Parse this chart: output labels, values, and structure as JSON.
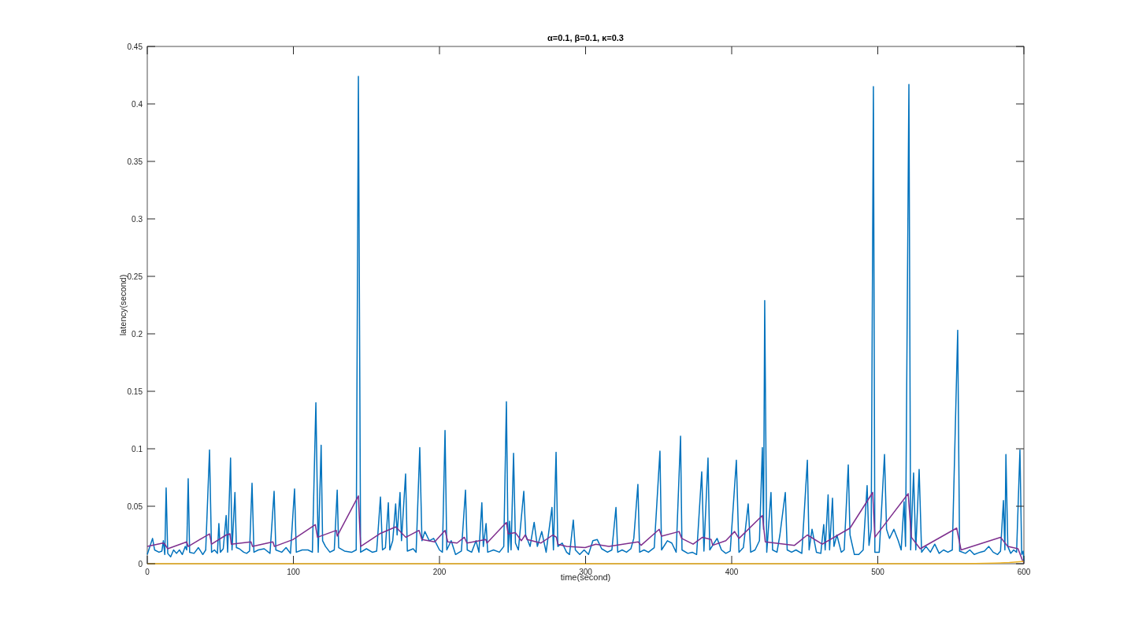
{
  "chart_data": {
    "type": "line",
    "title": "α=0.1, β=0.1, κ=0.3",
    "xlabel": "time(second)",
    "ylabel": "latency(second)",
    "xlim": [
      0,
      600
    ],
    "xticks": [
      0,
      100,
      200,
      300,
      400,
      500,
      600
    ],
    "ylim": [
      0,
      0.45
    ],
    "yticks": [
      0,
      0.05,
      0.1,
      0.15,
      0.2,
      0.25,
      0.3,
      0.35,
      0.4,
      0.45
    ],
    "grid": false,
    "marker": "none",
    "line_style": "solid",
    "series": [
      {
        "color": "#0072bd",
        "x": [
          0,
          3.6,
          5,
          8,
          10,
          11,
          12,
          12.9,
          14,
          16,
          18,
          20,
          22,
          24,
          26,
          27,
          28,
          29,
          32,
          35,
          38,
          40,
          42.6,
          44,
          46,
          48,
          49,
          50,
          52,
          54,
          55,
          57,
          58,
          60,
          61,
          63,
          66,
          68,
          70,
          71.7,
          73,
          76,
          80,
          84,
          86.8,
          88,
          92,
          95,
          98,
          100.8,
          102,
          106,
          110,
          113,
          115.4,
          117,
          119,
          120,
          122,
          125,
          128,
          130,
          131,
          135,
          140,
          143,
          144.5,
          146,
          150,
          154,
          157,
          159.6,
          161,
          163,
          165,
          166,
          168,
          170,
          171,
          173,
          174,
          176.8,
          178,
          182,
          184,
          186.5,
          188,
          190,
          193,
          196,
          200,
          202,
          203.8,
          205,
          208,
          211,
          215,
          217.8,
          219,
          222,
          225,
          227,
          229,
          230,
          231.9,
          233,
          237,
          241,
          244,
          245.8,
          247,
          248,
          249,
          250.7,
          252,
          254,
          257.7,
          259,
          262,
          264.8,
          267,
          270,
          273,
          277,
          278,
          279.8,
          281,
          284,
          287,
          289,
          291.6,
          293,
          296,
          299,
          302,
          305,
          308,
          311,
          315,
          318,
          320.8,
          322,
          325,
          328,
          331,
          333,
          335.8,
          337,
          340,
          343,
          347,
          350.9,
          352,
          356,
          359,
          362,
          365,
          366,
          370,
          373,
          376,
          379.5,
          381,
          383.8,
          385,
          390,
          393,
          396,
          399,
          403.2,
          405,
          408,
          411.3,
          413,
          416,
          419,
          421,
          421.8,
          422.6,
          424,
          426.9,
          428,
          431,
          433,
          436.7,
          438,
          441,
          444,
          448,
          451.8,
          453,
          455,
          458,
          461,
          463,
          464,
          466,
          467,
          469,
          470,
          472,
          475,
          477,
          479.8,
          481,
          484,
          487,
          490,
          492.7,
          494,
          495.5,
          497,
          498,
          501,
          504.6,
          506,
          508,
          511,
          514,
          516,
          518,
          519,
          521.3,
          522.5,
          524.5,
          526,
          528.3,
          530,
          533,
          536,
          539,
          542,
          545,
          548,
          551,
          554.7,
          556,
          560,
          563,
          566,
          570,
          573,
          576,
          579,
          582,
          584,
          586,
          587,
          587.7,
          589,
          591,
          593,
          595,
          597.3,
          598.5,
          599.5,
          600
        ],
        "values": [
          0.008,
          0.022,
          0.012,
          0.01,
          0.011,
          0.02,
          0.008,
          0.066,
          0.009,
          0.006,
          0.012,
          0.009,
          0.012,
          0.008,
          0.015,
          0.012,
          0.074,
          0.01,
          0.009,
          0.014,
          0.008,
          0.012,
          0.099,
          0.01,
          0.012,
          0.009,
          0.035,
          0.01,
          0.013,
          0.042,
          0.01,
          0.092,
          0.012,
          0.062,
          0.014,
          0.013,
          0.01,
          0.009,
          0.011,
          0.07,
          0.01,
          0.012,
          0.013,
          0.009,
          0.063,
          0.012,
          0.01,
          0.014,
          0.009,
          0.065,
          0.01,
          0.012,
          0.012,
          0.01,
          0.14,
          0.01,
          0.103,
          0.02,
          0.015,
          0.01,
          0.012,
          0.064,
          0.014,
          0.011,
          0.01,
          0.012,
          0.424,
          0.01,
          0.013,
          0.01,
          0.011,
          0.058,
          0.012,
          0.014,
          0.053,
          0.012,
          0.02,
          0.052,
          0.025,
          0.062,
          0.02,
          0.078,
          0.011,
          0.013,
          0.01,
          0.101,
          0.02,
          0.028,
          0.02,
          0.022,
          0.012,
          0.01,
          0.116,
          0.012,
          0.02,
          0.008,
          0.011,
          0.064,
          0.012,
          0.01,
          0.02,
          0.01,
          0.053,
          0.015,
          0.035,
          0.01,
          0.012,
          0.01,
          0.015,
          0.141,
          0.01,
          0.037,
          0.012,
          0.096,
          0.018,
          0.012,
          0.063,
          0.025,
          0.015,
          0.036,
          0.015,
          0.028,
          0.01,
          0.049,
          0.012,
          0.097,
          0.015,
          0.018,
          0.01,
          0.008,
          0.038,
          0.012,
          0.008,
          0.012,
          0.008,
          0.02,
          0.021,
          0.013,
          0.01,
          0.012,
          0.049,
          0.01,
          0.012,
          0.01,
          0.013,
          0.022,
          0.069,
          0.01,
          0.012,
          0.01,
          0.014,
          0.098,
          0.012,
          0.02,
          0.018,
          0.01,
          0.111,
          0.012,
          0.009,
          0.01,
          0.008,
          0.08,
          0.011,
          0.092,
          0.012,
          0.022,
          0.012,
          0.009,
          0.011,
          0.09,
          0.01,
          0.014,
          0.052,
          0.01,
          0.012,
          0.02,
          0.101,
          0.03,
          0.229,
          0.01,
          0.062,
          0.012,
          0.01,
          0.025,
          0.062,
          0.012,
          0.01,
          0.012,
          0.009,
          0.09,
          0.012,
          0.03,
          0.01,
          0.009,
          0.034,
          0.012,
          0.06,
          0.012,
          0.057,
          0.015,
          0.025,
          0.01,
          0.012,
          0.086,
          0.025,
          0.008,
          0.008,
          0.012,
          0.068,
          0.016,
          0.03,
          0.415,
          0.01,
          0.01,
          0.095,
          0.03,
          0.022,
          0.03,
          0.02,
          0.012,
          0.054,
          0.015,
          0.417,
          0.012,
          0.079,
          0.012,
          0.082,
          0.01,
          0.015,
          0.01,
          0.017,
          0.009,
          0.012,
          0.01,
          0.012,
          0.203,
          0.011,
          0.009,
          0.012,
          0.008,
          0.01,
          0.011,
          0.015,
          0.01,
          0.008,
          0.011,
          0.055,
          0.012,
          0.095,
          0.015,
          0.009,
          0.012,
          0.01,
          0.099,
          0.008,
          0.011,
          0.002
        ]
      },
      {
        "color": "#7e2f8e",
        "x": [
          0,
          10.8,
          12,
          14,
          27,
          28,
          42.6,
          44,
          54,
          56.6,
          57.5,
          71,
          72,
          86,
          87,
          99.7,
          115,
          116.5,
          129.4,
          130,
          144.5,
          146,
          159,
          170,
          177,
          186,
          188,
          196.7,
          203.8,
          205.7,
          212,
          217,
          218.8,
          231.8,
          232.5,
          245.8,
          247,
          252,
          256,
          258.7,
          260,
          269.5,
          277.6,
          280,
          281,
          287,
          299.7,
          307,
          316,
          336,
          338,
          350.4,
          352,
          364,
          365.8,
          373.6,
          380,
          386,
          387,
          396,
          402,
          405,
          421,
          423,
          443,
          451.8,
          462,
          481,
          496.5,
          498,
          504.6,
          520.8,
          523,
          529,
          554,
          557,
          584,
          589,
          596,
          599,
          600
        ],
        "values": [
          0.015,
          0.018,
          0.017,
          0.013,
          0.019,
          0.015,
          0.026,
          0.017,
          0.025,
          0.026,
          0.017,
          0.019,
          0.015,
          0.019,
          0.015,
          0.021,
          0.034,
          0.023,
          0.029,
          0.024,
          0.059,
          0.015,
          0.026,
          0.032,
          0.023,
          0.029,
          0.021,
          0.019,
          0.029,
          0.019,
          0.018,
          0.023,
          0.018,
          0.021,
          0.018,
          0.036,
          0.026,
          0.027,
          0.02,
          0.025,
          0.021,
          0.018,
          0.025,
          0.023,
          0.017,
          0.015,
          0.014,
          0.017,
          0.015,
          0.019,
          0.016,
          0.03,
          0.024,
          0.028,
          0.022,
          0.017,
          0.023,
          0.021,
          0.016,
          0.02,
          0.028,
          0.022,
          0.042,
          0.019,
          0.016,
          0.025,
          0.017,
          0.031,
          0.062,
          0.023,
          0.034,
          0.061,
          0.023,
          0.013,
          0.031,
          0.012,
          0.023,
          0.015,
          0.013,
          0.003,
          0.001
        ]
      },
      {
        "color": "#edb120",
        "x": [
          0,
          560,
          580,
          590,
          600
        ],
        "values": [
          0,
          0,
          0.0005,
          0.001,
          0.002
        ]
      }
    ]
  }
}
